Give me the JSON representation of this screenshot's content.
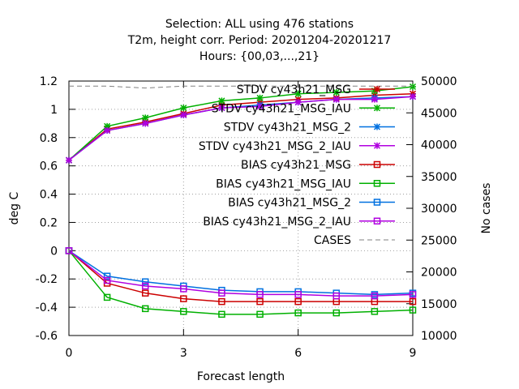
{
  "chart_data": {
    "type": "line",
    "title": [
      "Selection: ALL using   476 stations",
      "T2m, height corr.   Period: 20201204-20201217",
      "Hours: {00,03,...,21}"
    ],
    "xlabel": "Forecast length",
    "ylabel": "deg C",
    "y2label": "No cases",
    "xlim": [
      0,
      9
    ],
    "ylim": [
      -0.6,
      1.2
    ],
    "y2lim": [
      10000,
      50000
    ],
    "xticks": [
      0,
      3,
      6,
      9
    ],
    "yticks": [
      -0.6,
      -0.4,
      -0.2,
      0,
      0.2,
      0.4,
      0.6,
      0.8,
      1,
      1.2
    ],
    "y2ticks": [
      10000,
      15000,
      20000,
      25000,
      30000,
      35000,
      40000,
      45000,
      50000
    ],
    "grid": true,
    "legend_position": "top-right",
    "x": [
      0,
      1,
      2,
      3,
      4,
      5,
      6,
      7,
      8,
      9
    ],
    "series": [
      {
        "name": "STDV cy43h21_MSG",
        "axis": "left",
        "color": "#cc0000",
        "marker": "star",
        "values": [
          0.64,
          0.86,
          0.91,
          0.97,
          1.03,
          1.05,
          1.07,
          1.08,
          1.1,
          1.11
        ]
      },
      {
        "name": "STDV cy43h21_MSG_IAU",
        "axis": "left",
        "color": "#00b000",
        "marker": "star",
        "values": [
          0.64,
          0.88,
          0.94,
          1.01,
          1.06,
          1.08,
          1.11,
          1.12,
          1.13,
          1.16
        ]
      },
      {
        "name": "STDV cy43h21_MSG_2",
        "axis": "left",
        "color": "#0070e0",
        "marker": "star",
        "values": [
          0.64,
          0.85,
          0.9,
          0.96,
          1.01,
          1.03,
          1.05,
          1.07,
          1.08,
          1.09
        ]
      },
      {
        "name": "STDV cy43h21_MSG_2_IAU",
        "axis": "left",
        "color": "#b000e0",
        "marker": "star",
        "values": [
          0.64,
          0.85,
          0.9,
          0.96,
          1.01,
          1.02,
          1.05,
          1.07,
          1.07,
          1.09
        ]
      },
      {
        "name": "BIAS cy43h21_MSG",
        "axis": "left",
        "color": "#cc0000",
        "marker": "square",
        "values": [
          0.0,
          -0.23,
          -0.3,
          -0.34,
          -0.36,
          -0.36,
          -0.36,
          -0.36,
          -0.36,
          -0.36
        ]
      },
      {
        "name": "BIAS cy43h21_MSG_IAU",
        "axis": "left",
        "color": "#00b000",
        "marker": "square",
        "values": [
          0.0,
          -0.33,
          -0.41,
          -0.43,
          -0.45,
          -0.45,
          -0.44,
          -0.44,
          -0.43,
          -0.42
        ]
      },
      {
        "name": "BIAS cy43h21_MSG_2",
        "axis": "left",
        "color": "#0070e0",
        "marker": "square",
        "values": [
          0.0,
          -0.18,
          -0.22,
          -0.25,
          -0.28,
          -0.29,
          -0.29,
          -0.3,
          -0.31,
          -0.3
        ]
      },
      {
        "name": "BIAS cy43h21_MSG_2_IAU",
        "axis": "left",
        "color": "#b000e0",
        "marker": "square",
        "values": [
          0.0,
          -0.21,
          -0.25,
          -0.27,
          -0.3,
          -0.31,
          -0.31,
          -0.32,
          -0.32,
          -0.31
        ]
      },
      {
        "name": "CASES",
        "axis": "right",
        "color": "#808080",
        "marker": "none",
        "dash": true,
        "values": [
          49200,
          49200,
          48900,
          49200,
          49200,
          49200,
          49200,
          49200,
          49200,
          49200
        ]
      }
    ]
  }
}
